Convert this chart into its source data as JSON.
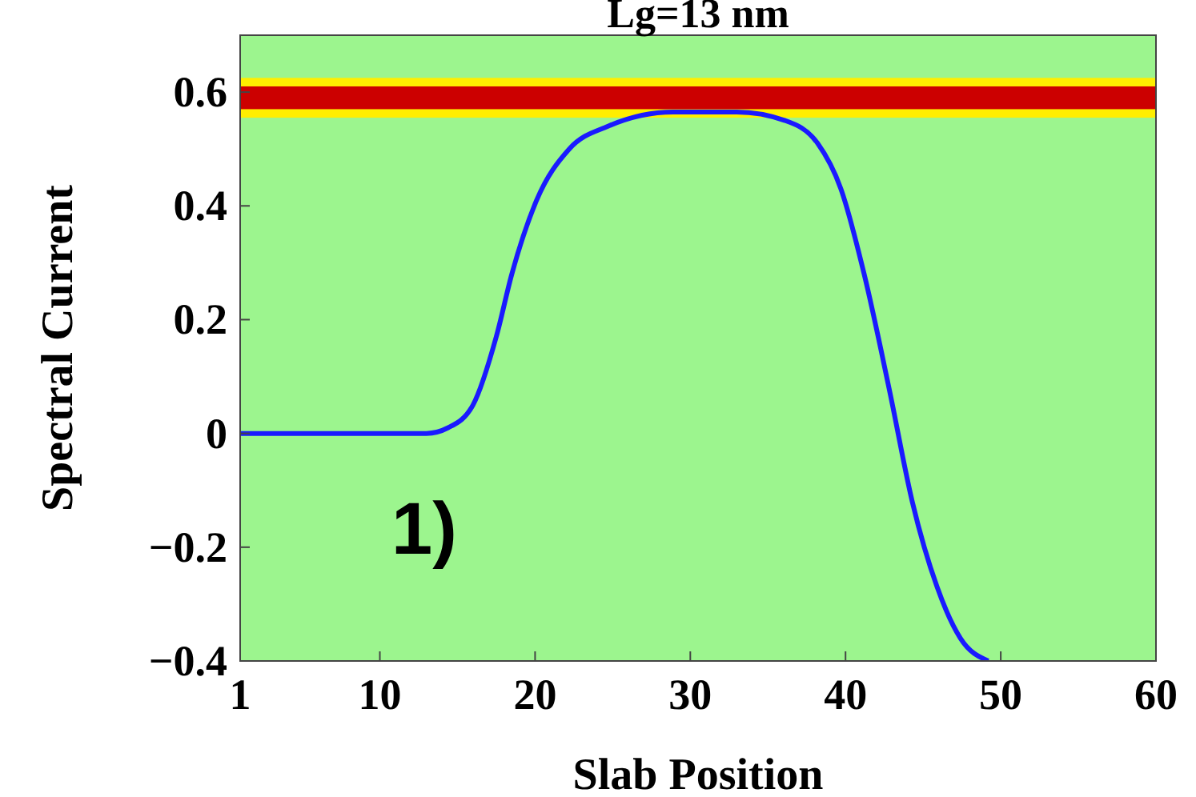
{
  "chart_data": {
    "type": "line",
    "title": "Lg=13 nm",
    "xlabel": "Slab Position",
    "ylabel": "Spectral Current",
    "annotations": [
      "1)"
    ],
    "x": [
      1,
      5,
      10,
      13,
      14.4,
      16,
      17.5,
      18.5,
      20.1,
      22.2,
      24.7,
      28.9,
      33,
      36.1,
      38.2,
      39.7,
      41.2,
      42.8,
      44.3,
      45.9,
      47.4,
      49.2
    ],
    "series": [
      {
        "color": "#1a1aff",
        "values": [
          0,
          0,
          0,
          0,
          0.01,
          0.05,
          0.17,
          0.28,
          0.41,
          0.5,
          0.54,
          0.565,
          0.565,
          0.55,
          0.51,
          0.43,
          0.28,
          0.08,
          -0.12,
          -0.27,
          -0.36,
          -0.4
        ]
      }
    ],
    "bands": [
      {
        "axis": "y",
        "from": 0.555,
        "to": 0.625,
        "color": "#ffee00"
      },
      {
        "axis": "y",
        "from": 0.57,
        "to": 0.61,
        "color": "#cc0000"
      }
    ],
    "xlim": [
      1,
      60
    ],
    "xticks": [
      1,
      10,
      20,
      30,
      40,
      50,
      60
    ],
    "ylim": [
      -0.4,
      0.7
    ],
    "yticks": [
      {
        "value": -0.4,
        "label": "−0.4"
      },
      {
        "value": -0.2,
        "label": "−0.2"
      },
      0,
      0.2,
      0.4,
      0.6
    ],
    "grid": false,
    "line_style": "solid"
  }
}
